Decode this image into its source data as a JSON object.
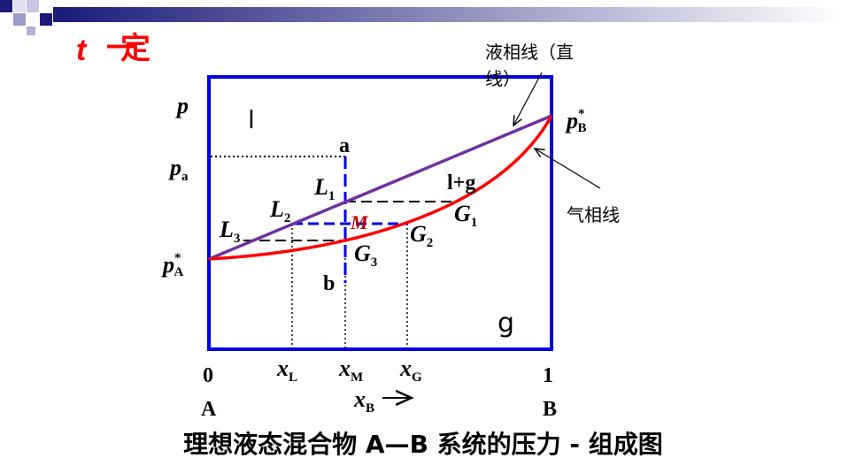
{
  "header": {
    "condition_var": "t",
    "condition_text": "一定"
  },
  "diagram": {
    "liquidus_label": [
      "液相线（直",
      "线）"
    ],
    "vapor_label": "气相线",
    "y_axis": "p",
    "p_a": {
      "main": "p",
      "sub": "a"
    },
    "p_B": {
      "main": "p",
      "sup": "*",
      "sub": "B"
    },
    "p_A": {
      "main": "p",
      "sup": "*",
      "sub": "A"
    },
    "region_l": "l",
    "region_lg": "l+g",
    "region_g": "g",
    "point_a": "a",
    "point_b": "b",
    "point_M": "M",
    "L1": {
      "main": "L",
      "sub": "1"
    },
    "L2": {
      "main": "L",
      "sub": "2"
    },
    "L3": {
      "main": "L",
      "sub": "3"
    },
    "G1": {
      "main": "G",
      "sub": "1"
    },
    "G2": {
      "main": "G",
      "sub": "2"
    },
    "G3": {
      "main": "G",
      "sub": "3"
    },
    "x_zero": "0",
    "x_one": "1",
    "x_A": "A",
    "x_B_end": "B",
    "xL": {
      "main": "x",
      "sub": "L"
    },
    "xM": {
      "main": "x",
      "sub": "M"
    },
    "xG": {
      "main": "x",
      "sub": "G"
    },
    "xB": {
      "main": "x",
      "sub": "B"
    }
  },
  "title": "理想液态混合物 A—B 系统的压力 - 组成图"
}
